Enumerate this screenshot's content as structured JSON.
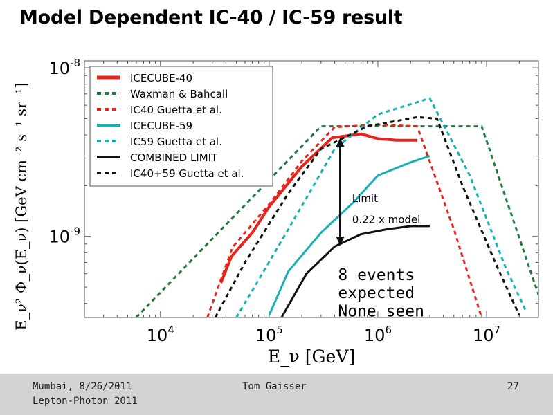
{
  "slide": {
    "title": "Model Dependent IC-40 / IC-59 result"
  },
  "chart_data": {
    "type": "line",
    "x_scale": "log",
    "y_scale": "log",
    "xlim": [
      2000,
      30000000
    ],
    "ylim": [
      3.3e-10,
      1.1e-08
    ],
    "xlabel": "E_ν [GeV]",
    "ylabel": "E_ν² Φ_ν(E_ν) [GeV cm⁻² s⁻¹ sr⁻¹]",
    "x_ticks": [
      {
        "value": 10000,
        "base": "10",
        "exp": "4"
      },
      {
        "value": 100000,
        "base": "10",
        "exp": "5"
      },
      {
        "value": 1000000,
        "base": "10",
        "exp": "6"
      },
      {
        "value": 10000000,
        "base": "10",
        "exp": "7"
      }
    ],
    "y_ticks": [
      {
        "value": 1e-09,
        "base": "10",
        "exp": "-9"
      },
      {
        "value": 1e-08,
        "base": "10",
        "exp": "-8"
      }
    ],
    "legend_position": "top-left",
    "series": [
      {
        "name": "ICECUBE-40",
        "color": "#e8231c",
        "style": "solid",
        "width": 4,
        "points": [
          [
            36000,
            5.3e-10
          ],
          [
            45000,
            7.6e-10
          ],
          [
            70000,
            1.05e-09
          ],
          [
            100000,
            1.5e-09
          ],
          [
            200000,
            2.6e-09
          ],
          [
            380000,
            3.85e-09
          ],
          [
            700000,
            4.05e-09
          ],
          [
            1000000,
            3.8e-09
          ],
          [
            1500000,
            3.72e-09
          ],
          [
            2300000,
            3.72e-09
          ]
        ]
      },
      {
        "name": "Waxman & Bahcall",
        "color": "#1c7a3a",
        "style": "dashed",
        "width": 3,
        "points": [
          [
            6000,
            3.3e-10
          ],
          [
            300000,
            4.5e-09
          ],
          [
            9000000,
            4.5e-09
          ],
          [
            30000000,
            4.5e-10
          ]
        ]
      },
      {
        "name": "IC40 Guetta et al.",
        "color": "#e8231c",
        "style": "dashed",
        "width": 3,
        "points": [
          [
            27000,
            3.3e-10
          ],
          [
            46000,
            8.6e-10
          ],
          [
            100000,
            1.55e-09
          ],
          [
            200000,
            2.8e-09
          ],
          [
            400000,
            4.45e-09
          ],
          [
            1000000,
            4.6e-09
          ],
          [
            2300000,
            4.5e-09
          ],
          [
            5000000,
            1.1e-09
          ],
          [
            9000000,
            3.3e-10
          ]
        ]
      },
      {
        "name": "ICECUBE-59",
        "color": "#17b0b3",
        "style": "solid",
        "width": 3,
        "points": [
          [
            100000,
            3.4e-10
          ],
          [
            150000,
            6.2e-10
          ],
          [
            300000,
            1.05e-09
          ],
          [
            600000,
            1.6e-09
          ],
          [
            1000000,
            2.3e-09
          ],
          [
            2000000,
            2.75e-09
          ],
          [
            3000000,
            3e-09
          ]
        ]
      },
      {
        "name": "IC59 Guetta et al.",
        "color": "#17b0b3",
        "style": "dashed",
        "width": 3,
        "points": [
          [
            50000,
            3.3e-10
          ],
          [
            150000,
            1.1e-09
          ],
          [
            400000,
            3.3e-09
          ],
          [
            1000000,
            5.3e-09
          ],
          [
            3000000,
            6.6e-09
          ],
          [
            7000000,
            2.3e-09
          ],
          [
            15000000,
            6.5e-10
          ],
          [
            23000000,
            3.6e-10
          ]
        ]
      },
      {
        "name": "COMBINED LIMIT",
        "color": "#111111",
        "style": "solid",
        "width": 3,
        "points": [
          [
            130000,
            3.3e-10
          ],
          [
            220000,
            6e-10
          ],
          [
            400000,
            8.7e-10
          ],
          [
            700000,
            1.03e-09
          ],
          [
            1200000,
            1.1e-09
          ],
          [
            2000000,
            1.15e-09
          ],
          [
            3000000,
            1.15e-09
          ]
        ]
      },
      {
        "name": "IC40+59 Guetta et al.",
        "color": "#111111",
        "style": "dashed",
        "width": 3,
        "points": [
          [
            32000,
            3.3e-10
          ],
          [
            60000,
            7e-10
          ],
          [
            150000,
            1.8e-09
          ],
          [
            300000,
            3.3e-09
          ],
          [
            800000,
            4.5e-09
          ],
          [
            2300000,
            5.1e-09
          ],
          [
            3500000,
            5e-09
          ],
          [
            6000000,
            2e-09
          ],
          [
            12000000,
            7e-10
          ],
          [
            20000000,
            3.4e-10
          ]
        ]
      }
    ],
    "arrow": {
      "x": 450000,
      "y_from": 3.85e-09,
      "y_to": 8.8e-10,
      "color": "#111111"
    },
    "annotations": [
      {
        "text": "Limit",
        "x": 580000,
        "y": 1.6e-09
      },
      {
        "text": "0.22 x model",
        "x": 580000,
        "y": 1.2e-09
      },
      {
        "text": "8 events",
        "x": 430000,
        "y": 5.5e-10
      },
      {
        "text": "expected",
        "x": 430000,
        "y": 4.3e-10
      },
      {
        "text": "None seen",
        "x": 430000,
        "y": 3.35e-10
      }
    ]
  },
  "footer": {
    "location_date": "Mumbai, 8/26/2011",
    "conference": "Lepton-Photon 2011",
    "author": "Tom Gaisser",
    "page_number": "27"
  }
}
